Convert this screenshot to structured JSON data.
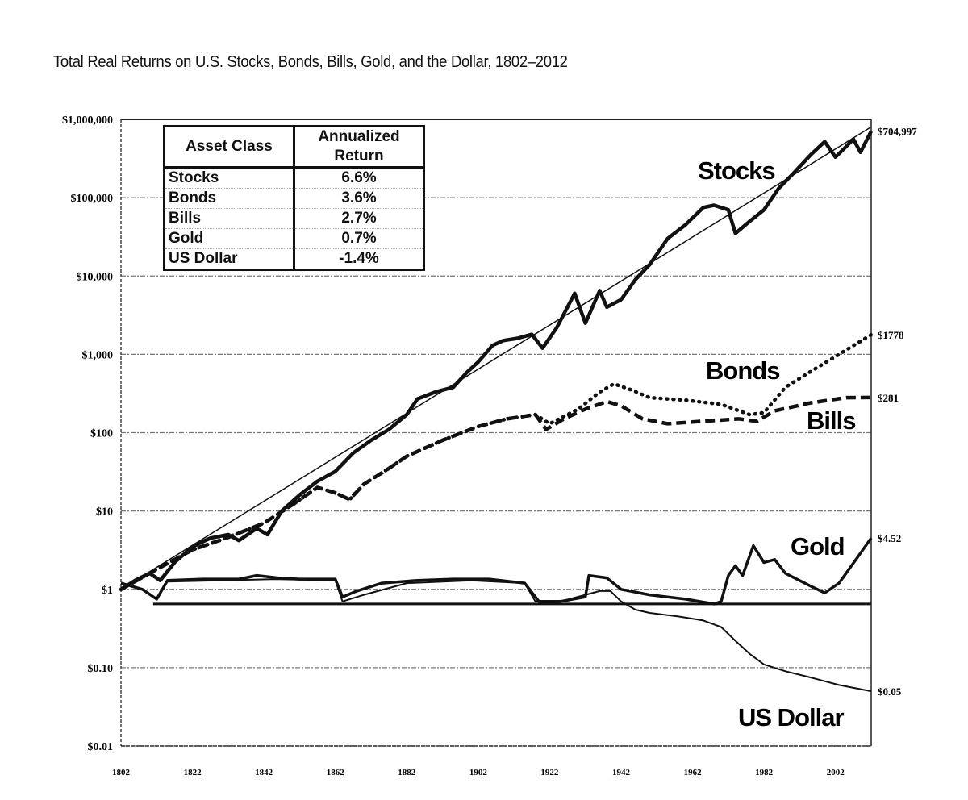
{
  "chart_data": {
    "type": "line",
    "title": "Total Real Returns on U.S. Stocks, Bonds, Bills, Gold, and the Dollar, 1802–2012",
    "xlabel": "",
    "ylabel": "",
    "y_scale": "log",
    "ylim": [
      0.01,
      1000000
    ],
    "xlim": [
      1802,
      2012
    ],
    "grid": true,
    "y_ticks": [
      {
        "value": 1000000,
        "label": "$1,000,000"
      },
      {
        "value": 100000,
        "label": "$100,000"
      },
      {
        "value": 10000,
        "label": "$10,000"
      },
      {
        "value": 1000,
        "label": "$1,000"
      },
      {
        "value": 100,
        "label": "$100"
      },
      {
        "value": 10,
        "label": "$10"
      },
      {
        "value": 1,
        "label": "$1"
      },
      {
        "value": 0.1,
        "label": "$0.10"
      },
      {
        "value": 0.01,
        "label": "$0.01"
      }
    ],
    "x_ticks": [
      "1802",
      "1822",
      "1842",
      "1862",
      "1882",
      "1902",
      "1922",
      "1942",
      "1962",
      "1982",
      "2002"
    ],
    "series": [
      {
        "name": "Stocks",
        "style": "solid-thick",
        "end_label": "$704,997",
        "points": [
          [
            1802,
            1
          ],
          [
            1806,
            1.3
          ],
          [
            1810,
            1.6
          ],
          [
            1813,
            1.3
          ],
          [
            1817,
            2.2
          ],
          [
            1822,
            3.5
          ],
          [
            1827,
            4.5
          ],
          [
            1832,
            5
          ],
          [
            1835,
            4.2
          ],
          [
            1840,
            6
          ],
          [
            1843,
            5
          ],
          [
            1847,
            10
          ],
          [
            1852,
            16
          ],
          [
            1857,
            24
          ],
          [
            1862,
            32
          ],
          [
            1867,
            55
          ],
          [
            1872,
            80
          ],
          [
            1877,
            110
          ],
          [
            1882,
            170
          ],
          [
            1885,
            270
          ],
          [
            1890,
            330
          ],
          [
            1895,
            380
          ],
          [
            1899,
            600
          ],
          [
            1902,
            800
          ],
          [
            1906,
            1300
          ],
          [
            1909,
            1500
          ],
          [
            1913,
            1600
          ],
          [
            1917,
            1800
          ],
          [
            1920,
            1200
          ],
          [
            1924,
            2200
          ],
          [
            1929,
            6000
          ],
          [
            1932,
            2500
          ],
          [
            1936,
            6500
          ],
          [
            1938,
            4000
          ],
          [
            1942,
            5000
          ],
          [
            1946,
            9000
          ],
          [
            1950,
            14000
          ],
          [
            1955,
            30000
          ],
          [
            1960,
            45000
          ],
          [
            1965,
            75000
          ],
          [
            1968,
            80000
          ],
          [
            1972,
            70000
          ],
          [
            1974,
            35000
          ],
          [
            1978,
            50000
          ],
          [
            1982,
            70000
          ],
          [
            1986,
            130000
          ],
          [
            1990,
            200000
          ],
          [
            1995,
            350000
          ],
          [
            1999,
            520000
          ],
          [
            2002,
            330000
          ],
          [
            2005,
            450000
          ],
          [
            2007,
            560000
          ],
          [
            2009,
            380000
          ],
          [
            2012,
            704997
          ]
        ]
      },
      {
        "name": "Stocks trend",
        "style": "thin",
        "points": [
          [
            1802,
            1
          ],
          [
            2012,
            800000
          ]
        ]
      },
      {
        "name": "Bonds",
        "style": "dotted",
        "end_label": "$1778",
        "points": [
          [
            1802,
            1
          ],
          [
            1812,
            1.8
          ],
          [
            1822,
            3.2
          ],
          [
            1832,
            4.6
          ],
          [
            1842,
            7
          ],
          [
            1850,
            12
          ],
          [
            1857,
            20
          ],
          [
            1862,
            17
          ],
          [
            1866,
            14
          ],
          [
            1870,
            22
          ],
          [
            1877,
            35
          ],
          [
            1882,
            50
          ],
          [
            1892,
            80
          ],
          [
            1902,
            120
          ],
          [
            1910,
            150
          ],
          [
            1918,
            170
          ],
          [
            1922,
            130
          ],
          [
            1930,
            200
          ],
          [
            1936,
            330
          ],
          [
            1940,
            420
          ],
          [
            1945,
            350
          ],
          [
            1950,
            280
          ],
          [
            1960,
            260
          ],
          [
            1970,
            230
          ],
          [
            1978,
            170
          ],
          [
            1982,
            180
          ],
          [
            1988,
            380
          ],
          [
            1995,
            600
          ],
          [
            2003,
            1000
          ],
          [
            2012,
            1778
          ]
        ]
      },
      {
        "name": "Bills",
        "style": "dashed",
        "end_label": "$281",
        "points": [
          [
            1802,
            1
          ],
          [
            1812,
            1.8
          ],
          [
            1822,
            3.2
          ],
          [
            1832,
            4.6
          ],
          [
            1842,
            7
          ],
          [
            1850,
            12
          ],
          [
            1857,
            20
          ],
          [
            1862,
            17
          ],
          [
            1866,
            14
          ],
          [
            1870,
            22
          ],
          [
            1877,
            35
          ],
          [
            1882,
            50
          ],
          [
            1892,
            80
          ],
          [
            1902,
            120
          ],
          [
            1910,
            150
          ],
          [
            1918,
            170
          ],
          [
            1921,
            110
          ],
          [
            1926,
            150
          ],
          [
            1932,
            200
          ],
          [
            1938,
            250
          ],
          [
            1942,
            220
          ],
          [
            1948,
            150
          ],
          [
            1955,
            130
          ],
          [
            1965,
            140
          ],
          [
            1975,
            150
          ],
          [
            1980,
            140
          ],
          [
            1985,
            190
          ],
          [
            1995,
            240
          ],
          [
            2005,
            280
          ],
          [
            2012,
            281
          ]
        ]
      },
      {
        "name": "Gold",
        "style": "solid",
        "end_label": "$4.52",
        "points": [
          [
            1802,
            1.2
          ],
          [
            1808,
            1.0
          ],
          [
            1812,
            0.75
          ],
          [
            1815,
            1.3
          ],
          [
            1825,
            1.35
          ],
          [
            1835,
            1.35
          ],
          [
            1840,
            1.5
          ],
          [
            1846,
            1.4
          ],
          [
            1852,
            1.35
          ],
          [
            1862,
            1.35
          ],
          [
            1864,
            0.8
          ],
          [
            1868,
            0.95
          ],
          [
            1875,
            1.2
          ],
          [
            1885,
            1.3
          ],
          [
            1895,
            1.35
          ],
          [
            1905,
            1.35
          ],
          [
            1915,
            1.2
          ],
          [
            1919,
            0.7
          ],
          [
            1925,
            0.7
          ],
          [
            1932,
            0.8
          ],
          [
            1933,
            1.5
          ],
          [
            1938,
            1.4
          ],
          [
            1942,
            1.0
          ],
          [
            1950,
            0.85
          ],
          [
            1960,
            0.75
          ],
          [
            1968,
            0.65
          ],
          [
            1970,
            0.7
          ],
          [
            1972,
            1.5
          ],
          [
            1974,
            2.0
          ],
          [
            1976,
            1.5
          ],
          [
            1979,
            3.6
          ],
          [
            1982,
            2.2
          ],
          [
            1985,
            2.4
          ],
          [
            1988,
            1.6
          ],
          [
            1995,
            1.1
          ],
          [
            1999,
            0.9
          ],
          [
            2003,
            1.2
          ],
          [
            2008,
            2.5
          ],
          [
            2012,
            4.52
          ]
        ]
      },
      {
        "name": "US Dollar",
        "style": "solid-thin",
        "end_label": "$0.05",
        "points": [
          [
            1802,
            1.2
          ],
          [
            1808,
            1.0
          ],
          [
            1812,
            0.75
          ],
          [
            1815,
            1.25
          ],
          [
            1830,
            1.3
          ],
          [
            1845,
            1.35
          ],
          [
            1862,
            1.3
          ],
          [
            1864,
            0.7
          ],
          [
            1870,
            0.85
          ],
          [
            1882,
            1.2
          ],
          [
            1900,
            1.3
          ],
          [
            1915,
            1.2
          ],
          [
            1918,
            0.7
          ],
          [
            1925,
            0.7
          ],
          [
            1932,
            0.85
          ],
          [
            1936,
            0.95
          ],
          [
            1939,
            0.95
          ],
          [
            1942,
            0.7
          ],
          [
            1946,
            0.55
          ],
          [
            1950,
            0.5
          ],
          [
            1958,
            0.45
          ],
          [
            1965,
            0.4
          ],
          [
            1970,
            0.33
          ],
          [
            1974,
            0.22
          ],
          [
            1978,
            0.15
          ],
          [
            1982,
            0.11
          ],
          [
            1988,
            0.09
          ],
          [
            1995,
            0.075
          ],
          [
            2003,
            0.06
          ],
          [
            2012,
            0.05
          ]
        ]
      }
    ],
    "reference_line": 0.65,
    "series_labels": [
      "Stocks",
      "Bonds",
      "Bills",
      "Gold",
      "US Dollar"
    ],
    "table": {
      "headers": [
        "Asset Class",
        "Annualized Return"
      ],
      "rows": [
        [
          "Stocks",
          "6.6%"
        ],
        [
          "Bonds",
          "3.6%"
        ],
        [
          "Bills",
          "2.7%"
        ],
        [
          "Gold",
          "0.7%"
        ],
        [
          "US Dollar",
          "-1.4%"
        ]
      ]
    }
  }
}
